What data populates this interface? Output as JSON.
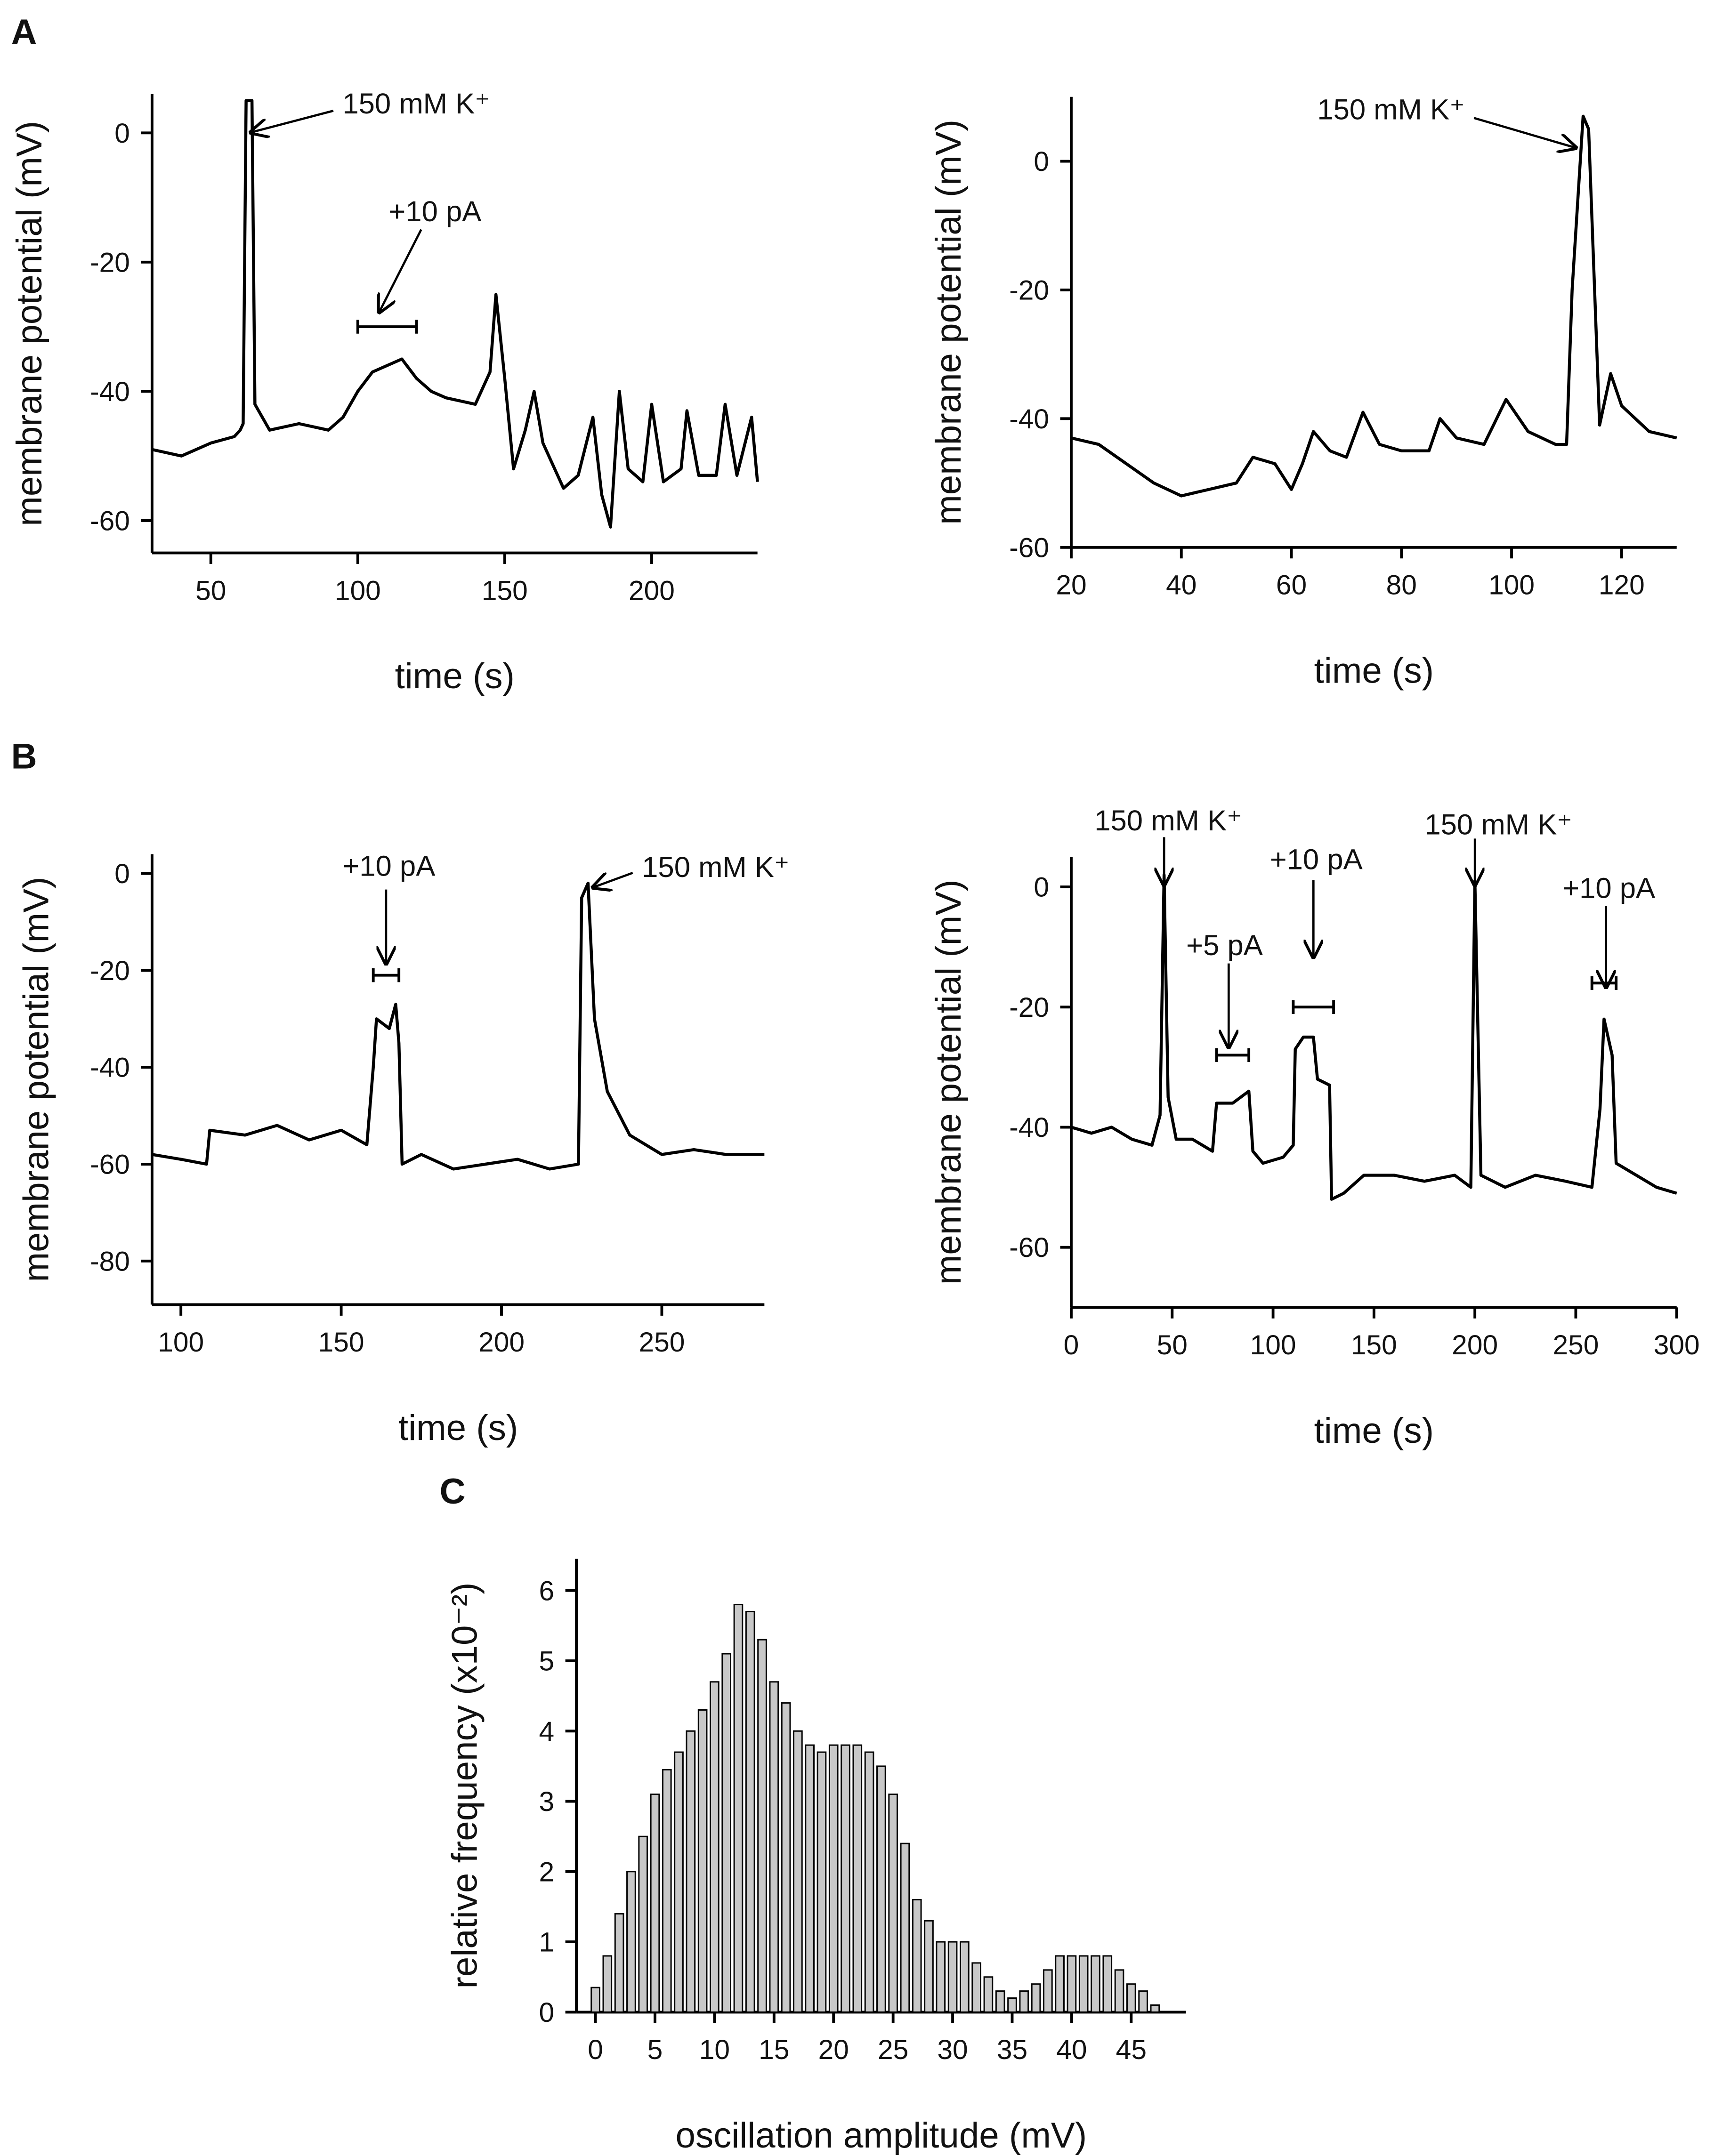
{
  "chart_data": [
    {
      "type": "line",
      "panel": "A",
      "xlabel": "time (s)",
      "ylabel": "membrane potential (mV)",
      "color": "#000000",
      "xlim": [
        30,
        236
      ],
      "xticks": [
        50,
        100,
        150,
        200
      ],
      "ylim": [
        -65,
        6
      ],
      "yticks": [
        -60,
        -40,
        -20,
        0
      ],
      "x": [
        30,
        40,
        50,
        58,
        60,
        61,
        62,
        64,
        65,
        70,
        80,
        90,
        95,
        100,
        105,
        110,
        115,
        120,
        125,
        130,
        140,
        145,
        147,
        150,
        153,
        157,
        160,
        163,
        170,
        175,
        180,
        183,
        186,
        189,
        192,
        197,
        200,
        204,
        210,
        212,
        216,
        222,
        225,
        229,
        234,
        236
      ],
      "values": [
        -49,
        -50,
        -48,
        -47,
        -46,
        -45,
        5,
        5,
        -42,
        -46,
        -45,
        -46,
        -44,
        -40,
        -37,
        -36,
        -35,
        -38,
        -40,
        -41,
        -42,
        -37,
        -25,
        -38,
        -52,
        -46,
        -40,
        -48,
        -55,
        -53,
        -44,
        -56,
        -61,
        -40,
        -52,
        -54,
        -42,
        -54,
        -52,
        -43,
        -53,
        -53,
        -42,
        -53,
        -44,
        -54
      ],
      "annotations": [
        {
          "text": "150 mM K⁺",
          "x": 63,
          "y": 0
        },
        {
          "text": "+10 pA",
          "x": 107,
          "y": -28
        }
      ],
      "bars": [
        {
          "x": [
            100,
            120
          ],
          "y": -30
        }
      ]
    },
    {
      "type": "line",
      "xlabel": "time (s)",
      "ylabel": "membrane potential (mV)",
      "color": "#000000",
      "xlim": [
        20,
        130
      ],
      "xticks": [
        20,
        40,
        60,
        80,
        100,
        120
      ],
      "ylim": [
        -60,
        10
      ],
      "yticks": [
        -60,
        -40,
        -20,
        0
      ],
      "x": [
        20,
        25,
        30,
        35,
        40,
        45,
        50,
        53,
        57,
        60,
        62,
        64,
        67,
        70,
        73,
        76,
        80,
        85,
        87,
        90,
        95,
        99,
        103,
        108,
        110,
        111,
        113,
        114,
        116,
        118,
        120,
        125,
        130
      ],
      "values": [
        -43,
        -44,
        -47,
        -50,
        -52,
        -51,
        -50,
        -46,
        -47,
        -51,
        -47,
        -42,
        -45,
        -46,
        -39,
        -44,
        -45,
        -45,
        -40,
        -43,
        -44,
        -37,
        -42,
        -44,
        -44,
        -20,
        7,
        5,
        -41,
        -33,
        -38,
        -42,
        -43
      ],
      "annotations": [
        {
          "text": "150 mM K⁺",
          "x": 112,
          "y": 2
        }
      ],
      "bars": []
    },
    {
      "type": "line",
      "panel": "B",
      "xlabel": "time (s)",
      "ylabel": "membrane potential (mV)",
      "color": "#000000",
      "xlim": [
        91,
        282
      ],
      "xticks": [
        100,
        150,
        200,
        250
      ],
      "ylim": [
        -89,
        4
      ],
      "yticks": [
        -80,
        -60,
        -40,
        -20,
        0
      ],
      "x": [
        91,
        100,
        108,
        109,
        120,
        130,
        140,
        150,
        158,
        160,
        161,
        165,
        167,
        168,
        169,
        175,
        185,
        195,
        205,
        215,
        224,
        225,
        227,
        229,
        233,
        240,
        250,
        260,
        270,
        282
      ],
      "values": [
        -58,
        -59,
        -60,
        -53,
        -54,
        -52,
        -55,
        -53,
        -56,
        -40,
        -30,
        -32,
        -27,
        -35,
        -60,
        -58,
        -61,
        -60,
        -59,
        -61,
        -60,
        -5,
        -2,
        -30,
        -45,
        -54,
        -58,
        -57,
        -58,
        -58
      ],
      "annotations": [
        {
          "text": "+10 pA",
          "x": 164,
          "y": -19
        },
        {
          "text": "150 mM K⁺",
          "x": 228,
          "y": -3
        }
      ],
      "bars": [
        {
          "x": [
            160,
            168
          ],
          "y": -21
        }
      ]
    },
    {
      "type": "line",
      "xlabel": "time (s)",
      "ylabel": "membrane potential (mV)",
      "color": "#000000",
      "xlim": [
        0,
        300
      ],
      "xticks": [
        0,
        50,
        100,
        150,
        200,
        250,
        300
      ],
      "ylim": [
        -70,
        5
      ],
      "yticks": [
        -60,
        -40,
        -20,
        0
      ],
      "x": [
        0,
        10,
        20,
        30,
        40,
        44,
        46,
        48,
        52,
        60,
        70,
        72,
        80,
        88,
        90,
        95,
        105,
        110,
        111,
        115,
        120,
        122,
        128,
        129,
        135,
        145,
        160,
        175,
        190,
        198,
        200,
        203,
        215,
        230,
        245,
        258,
        262,
        264,
        268,
        270,
        280,
        290,
        300
      ],
      "values": [
        -40,
        -41,
        -40,
        -42,
        -43,
        -38,
        2,
        -35,
        -42,
        -42,
        -44,
        -36,
        -36,
        -34,
        -44,
        -46,
        -45,
        -43,
        -27,
        -25,
        -25,
        -32,
        -33,
        -52,
        -51,
        -48,
        -48,
        -49,
        -48,
        -50,
        1,
        -48,
        -50,
        -48,
        -49,
        -50,
        -37,
        -22,
        -28,
        -46,
        -48,
        -50,
        -51
      ],
      "annotations": [
        {
          "text": "150 mM K⁺",
          "x": 46,
          "y": 0
        },
        {
          "text": "+5 pA",
          "x": 78,
          "y": -27
        },
        {
          "text": "+10 pA",
          "x": 120,
          "y": -12
        },
        {
          "text": "150 mM K⁺",
          "x": 200,
          "y": 0
        },
        {
          "text": "+10 pA",
          "x": 265,
          "y": -17
        }
      ],
      "bars": [
        {
          "x": [
            72,
            88
          ],
          "y": -28
        },
        {
          "x": [
            110,
            130
          ],
          "y": -20
        },
        {
          "x": [
            258,
            270
          ],
          "y": -16
        }
      ]
    },
    {
      "type": "bar",
      "panel": "C",
      "xlabel": "oscillation amplitude (mV)",
      "ylabel": "relative frequency (x10⁻²)",
      "color": "#c8c8c8",
      "xlim": [
        -1.6,
        49.6
      ],
      "xticks": [
        0,
        5,
        10,
        15,
        20,
        25,
        30,
        35,
        40,
        45
      ],
      "ylim": [
        0,
        6.45
      ],
      "yticks": [
        0,
        1,
        2,
        3,
        4,
        5,
        6
      ],
      "x": [
        0,
        1,
        2,
        3,
        4,
        5,
        6,
        7,
        8,
        9,
        10,
        11,
        12,
        13,
        14,
        15,
        16,
        17,
        18,
        19,
        20,
        21,
        22,
        23,
        24,
        25,
        26,
        27,
        28,
        29,
        30,
        31,
        32,
        33,
        34,
        35,
        36,
        37,
        38,
        39,
        40,
        41,
        42,
        43,
        44,
        45,
        46,
        47
      ],
      "values": [
        0.35,
        0.8,
        1.4,
        2.0,
        2.5,
        3.1,
        3.45,
        3.7,
        4.0,
        4.3,
        4.7,
        5.1,
        5.8,
        5.7,
        5.3,
        4.7,
        4.4,
        4.0,
        3.8,
        3.7,
        3.8,
        3.8,
        3.8,
        3.7,
        3.5,
        3.1,
        2.4,
        1.6,
        1.3,
        1.0,
        1.0,
        1.0,
        0.7,
        0.5,
        0.3,
        0.2,
        0.3,
        0.4,
        0.6,
        0.8,
        0.8,
        0.8,
        0.8,
        0.8,
        0.6,
        0.4,
        0.3,
        0.1
      ]
    }
  ]
}
